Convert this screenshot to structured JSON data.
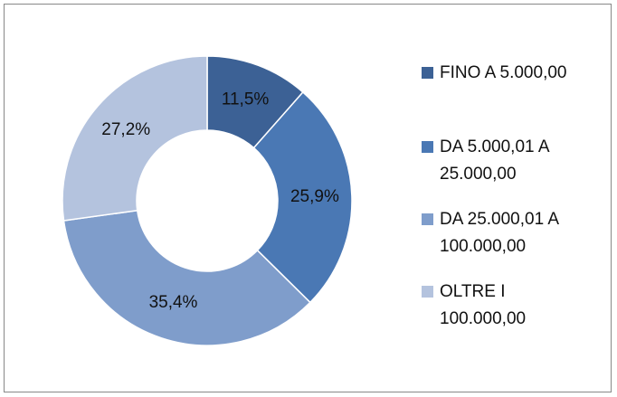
{
  "chart_data": {
    "type": "donut",
    "categories": [
      "FINO A 5.000,00",
      "DA 5.000,01 A 25.000,00",
      "DA 25.000,01 A 100.000,00",
      "OLTRE I 100.000,00"
    ],
    "values": [
      11.5,
      25.9,
      35.4,
      27.2
    ],
    "value_labels": [
      "11,5%",
      "25,9%",
      "35,4%",
      "27,2%"
    ],
    "colors": [
      "#3c6195",
      "#4a78b4",
      "#7f9dcb",
      "#b4c3de"
    ]
  }
}
